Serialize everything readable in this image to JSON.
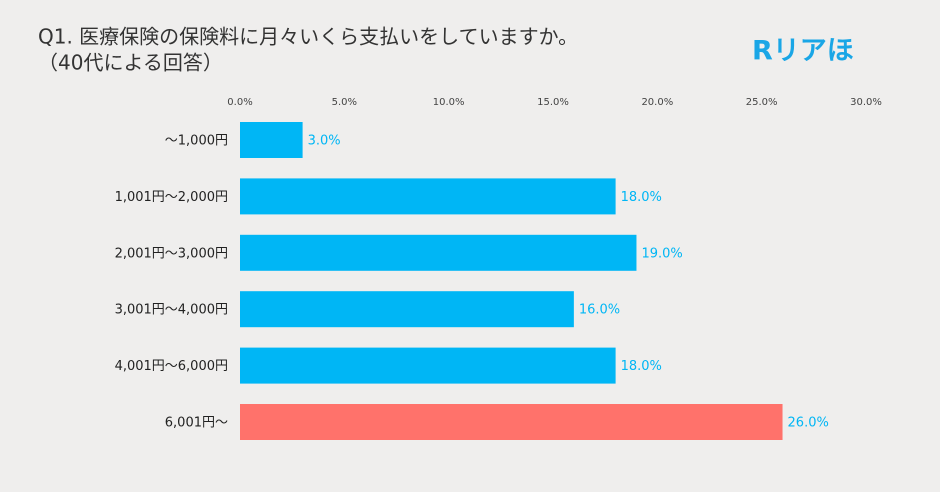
{
  "chart_data": {
    "type": "bar",
    "orientation": "horizontal",
    "title": "Q1. 医療保険の保険料に月々いくら支払いをしていますか。",
    "subtitle": "（40代による回答）",
    "logo": "Rリアほ",
    "categories": [
      "～1,000円",
      "1,001円～2,000円",
      "2,001円～3,000円",
      "3,001円～4,000円",
      "4,001円～6,000円",
      "6,001円～"
    ],
    "values": [
      3,
      18,
      19,
      16,
      18,
      26
    ],
    "value_labels": [
      "3.0%",
      "18.0%",
      "19.0%",
      "16.0%",
      "18.0%",
      "26.0%"
    ],
    "colors": [
      "#00b6f5",
      "#00b6f5",
      "#00b6f5",
      "#00b6f5",
      "#00b6f5",
      "#ff726b"
    ],
    "label_color": "#00b6f5",
    "xlim": [
      0,
      30
    ],
    "xticks": [
      {
        "value": 0,
        "label": "0.0%"
      },
      {
        "value": 5,
        "label": "5.0%"
      },
      {
        "value": 10,
        "label": "10.0%"
      },
      {
        "value": 15,
        "label": "15.0%"
      },
      {
        "value": 20,
        "label": "20.0%"
      },
      {
        "value": 25,
        "label": "25.0%"
      },
      {
        "value": 30,
        "label": "30.0%"
      }
    ],
    "grid": false
  }
}
